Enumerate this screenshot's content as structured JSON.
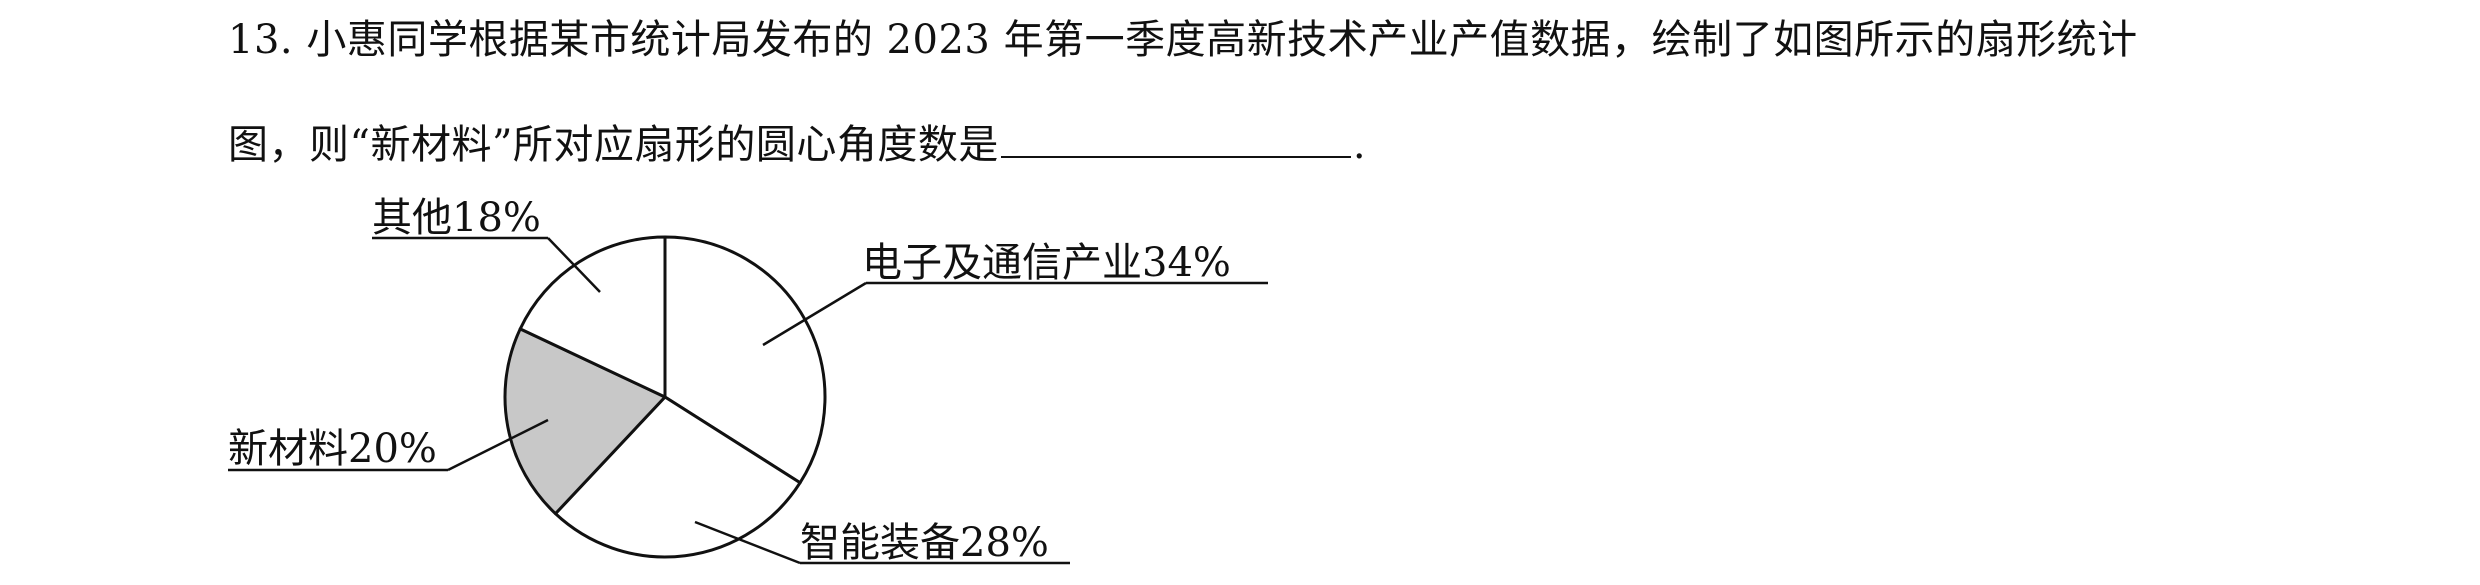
{
  "question": {
    "number": "13.",
    "line1": "小惠同学根据某市统计局发布的 2023 年第一季度高新技术产业产值数据，绘制了如图所示的扇形统计",
    "line2_before": "图，则“新材料”所对应扇形的圆心角度数是",
    "line2_after": "."
  },
  "chart_data": {
    "type": "pie",
    "categories": [
      "电子及通信产业",
      "智能装备",
      "新材料",
      "其他"
    ],
    "values": [
      34,
      28,
      20,
      18
    ],
    "labels": [
      "电子及通信产业34%",
      "智能装备28%",
      "新材料20%",
      "其他18%"
    ],
    "highlight": "新材料",
    "colors": {
      "slice_fill": "#ffffff",
      "highlight_fill": "#c8c8c8",
      "stroke": "#111111"
    }
  }
}
